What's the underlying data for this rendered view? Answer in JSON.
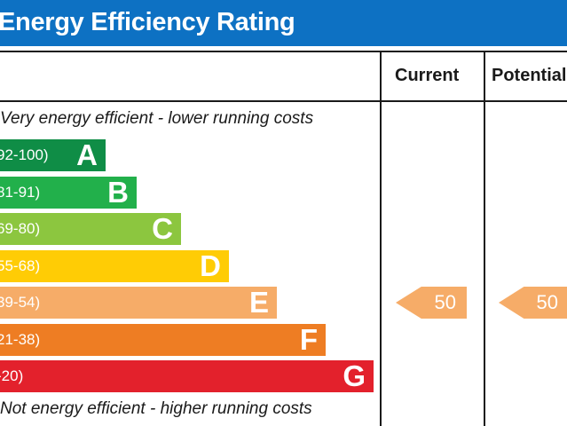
{
  "header": {
    "title": "Energy Efficiency Rating"
  },
  "columns": {
    "current": "Current",
    "potential": "Potential"
  },
  "captions": {
    "top": "Very energy efficient - lower running costs",
    "bottom": "Not energy efficient - higher running costs"
  },
  "chart_data": {
    "type": "bar",
    "title": "Energy Efficiency Rating",
    "categories": [
      "A",
      "B",
      "C",
      "D",
      "E",
      "F",
      "G"
    ],
    "bands": [
      {
        "letter": "A",
        "range": "92-100)",
        "color": "#0f8d46"
      },
      {
        "letter": "B",
        "range": "81-91)",
        "color": "#22b04b"
      },
      {
        "letter": "C",
        "range": "69-80)",
        "color": "#8cc63f"
      },
      {
        "letter": "D",
        "range": "55-68)",
        "color": "#ffcc05"
      },
      {
        "letter": "E",
        "range": "39-54)",
        "color": "#f6ac68"
      },
      {
        "letter": "F",
        "range": "21-38)",
        "color": "#ee7d23"
      },
      {
        "letter": "G",
        "range": "-20)",
        "color": "#e3212c"
      }
    ],
    "current": {
      "value": 50,
      "band": "E",
      "color": "#f6ac68"
    },
    "potential": {
      "value": 50,
      "band": "E",
      "color": "#f6ac68"
    }
  }
}
